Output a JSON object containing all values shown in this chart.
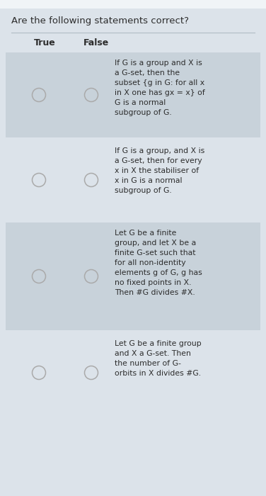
{
  "title": "Are the following statements correct?",
  "col_true": "True",
  "col_false": "False",
  "bg_outer": "#dce3ea",
  "bg_inner": "#e8edf1",
  "bg_row_shaded": "#c8d2da",
  "bg_row_unshaded": "#dce3ea",
  "text_color": "#2d2d2d",
  "circle_edge": "#aaaaaa",
  "circle_face_shaded": "#c8d2da",
  "circle_face_unshaded": "#dce3ea",
  "title_fontsize": 9.5,
  "header_fontsize": 9.0,
  "body_fontsize": 7.8,
  "separator_color": "#b0bcc5",
  "rows": [
    {
      "shaded": true,
      "text": "If G is a group and X is\na G-set, then the\nsubset {g in G: for all x\nin X one has gx = x} of\nG is a normal\nsubgroup of G."
    },
    {
      "shaded": false,
      "text": "If G is a group, and X is\na G-set, then for every\nx in X the stabiliser of\nx in G is a normal\nsubgroup of G."
    },
    {
      "shaded": true,
      "text": "Let G be a finite\ngroup, and let X be a\nfinite G-set such that\nfor all non-identity\nelements g of G, g has\nno fixed points in X.\nThen #G divides #X."
    },
    {
      "shaded": false,
      "text": "Let G be a finite group\nand X a G-set. Then\nthe number of G-\norbits in X divides #G."
    }
  ]
}
